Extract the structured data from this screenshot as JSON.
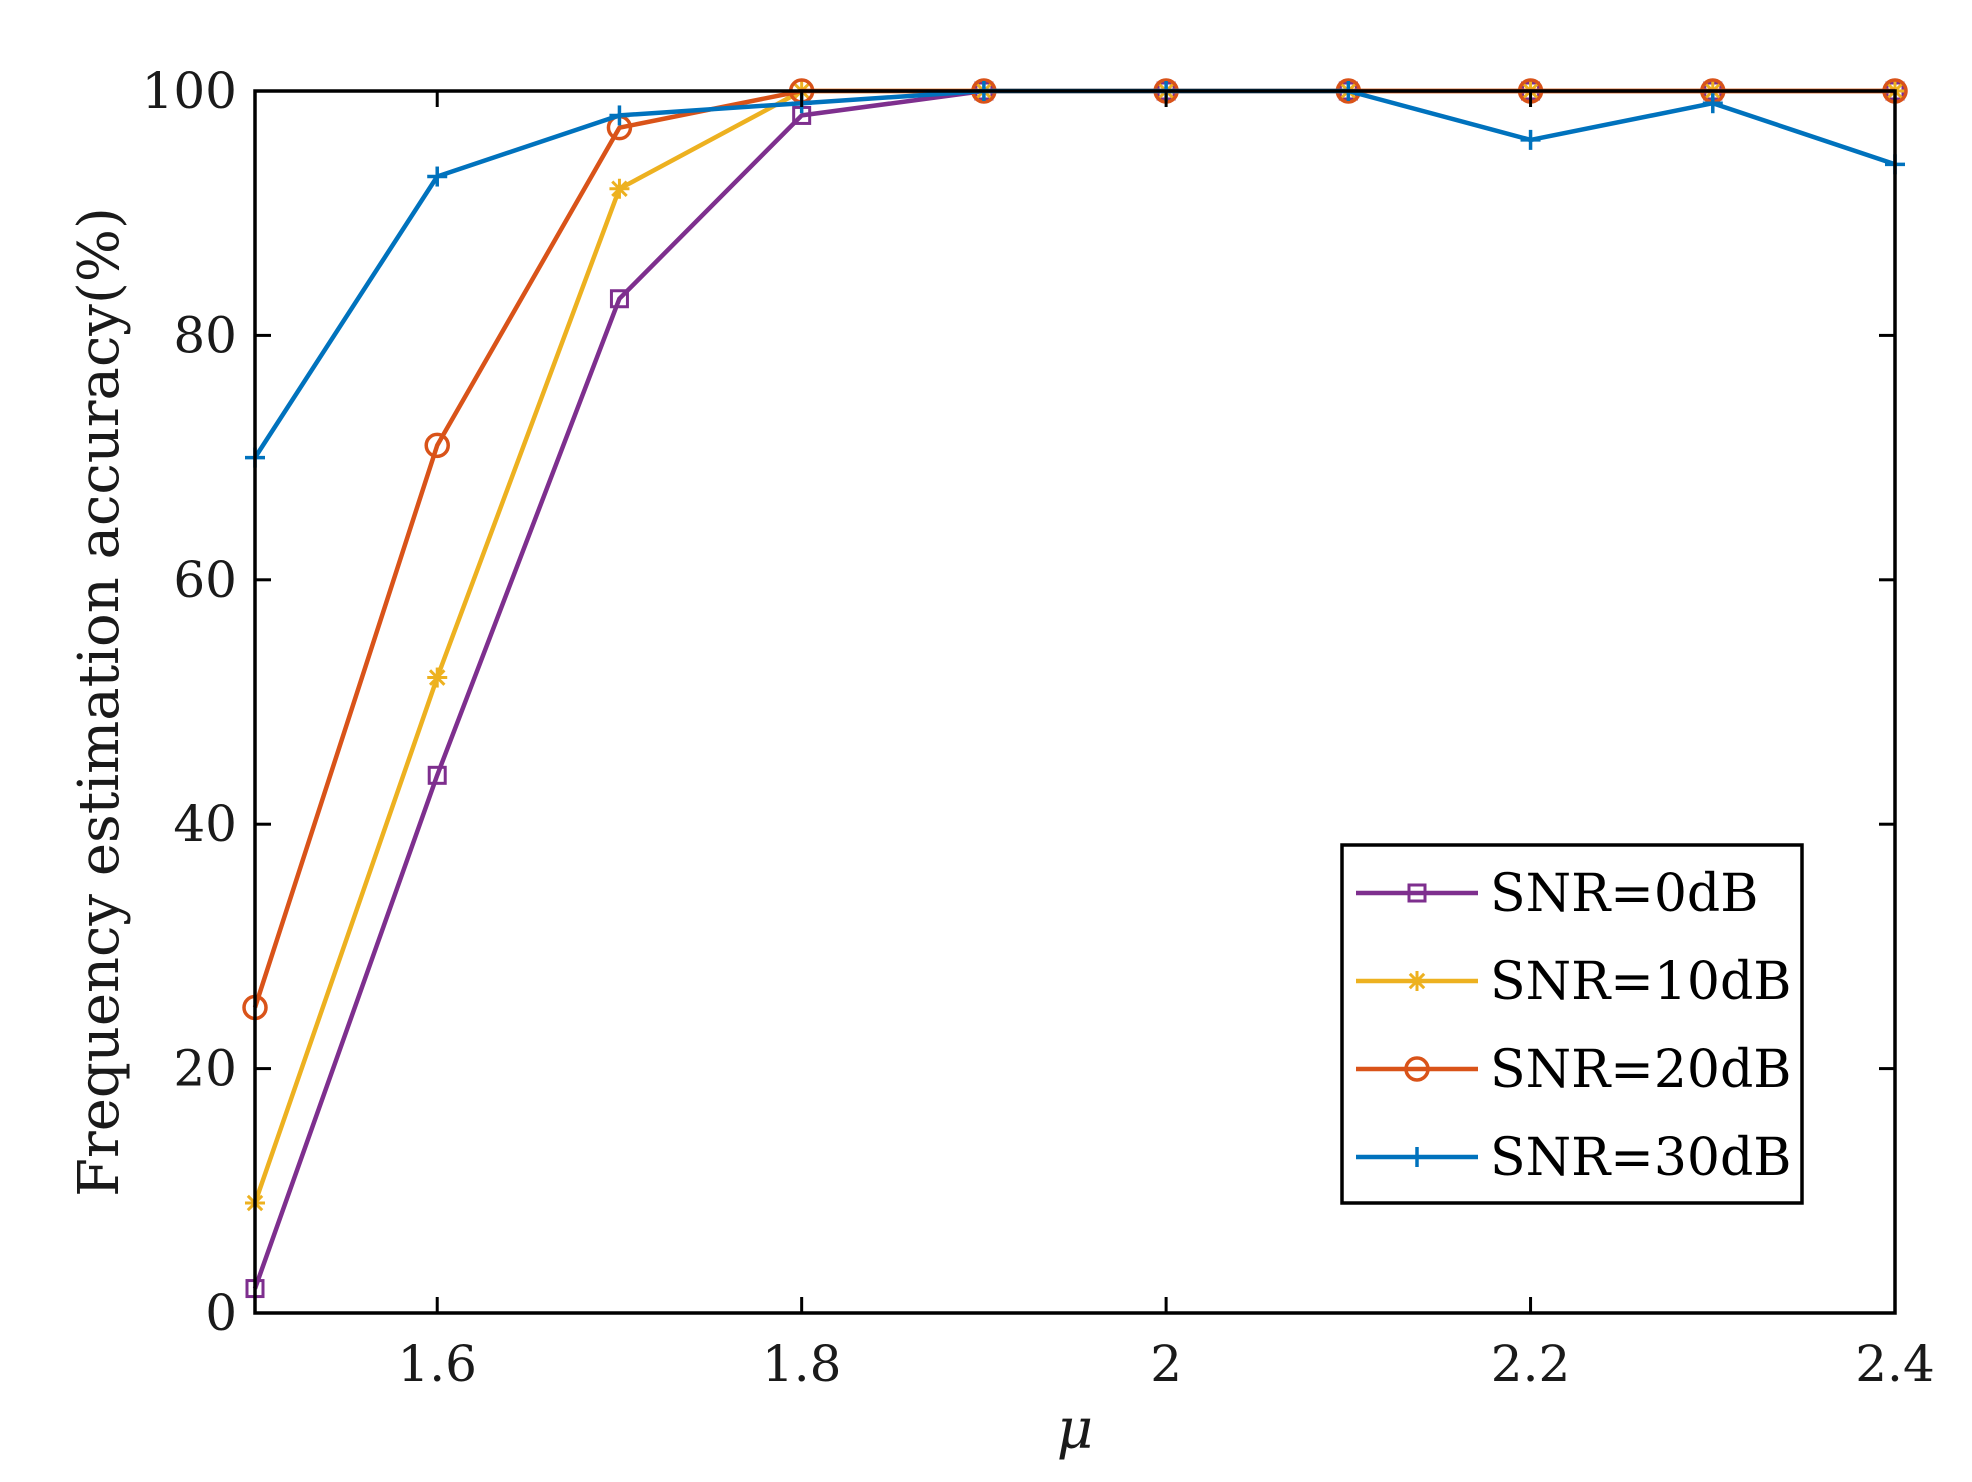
{
  "chart_data": {
    "type": "line",
    "title": "",
    "xlabel": "μ",
    "ylabel": "Frequency estimation accuracy(%)",
    "xlim": [
      1.5,
      2.4
    ],
    "ylim": [
      0,
      100
    ],
    "xticks": [
      1.6,
      1.8,
      2,
      2.2,
      2.4
    ],
    "xtick_labels": [
      "1.6",
      "1.8",
      "2",
      "2.2",
      "2.4"
    ],
    "yticks": [
      0,
      20,
      40,
      60,
      80,
      100
    ],
    "ytick_labels": [
      "0",
      "20",
      "40",
      "60",
      "80",
      "100"
    ],
    "grid": false,
    "legend_position": "bottom-right",
    "x": [
      1.5,
      1.6,
      1.7,
      1.8,
      1.9,
      2.0,
      2.1,
      2.2,
      2.3,
      2.4
    ],
    "series": [
      {
        "name": "SNR=0dB",
        "color": "#7E2F8E",
        "marker": "square",
        "values": [
          2,
          44,
          83,
          98,
          100,
          100,
          100,
          100,
          100,
          100
        ]
      },
      {
        "name": "SNR=10dB",
        "color": "#EDB120",
        "marker": "asterisk",
        "values": [
          9,
          52,
          92,
          100,
          100,
          100,
          100,
          100,
          100,
          100
        ]
      },
      {
        "name": "SNR=20dB",
        "color": "#D95319",
        "marker": "circle",
        "values": [
          25,
          71,
          97,
          100,
          100,
          100,
          100,
          100,
          100,
          100
        ]
      },
      {
        "name": "SNR=30dB",
        "color": "#0072BD",
        "marker": "plus",
        "values": [
          70,
          93,
          98,
          99,
          100,
          100,
          100,
          96,
          99,
          94
        ]
      }
    ]
  }
}
